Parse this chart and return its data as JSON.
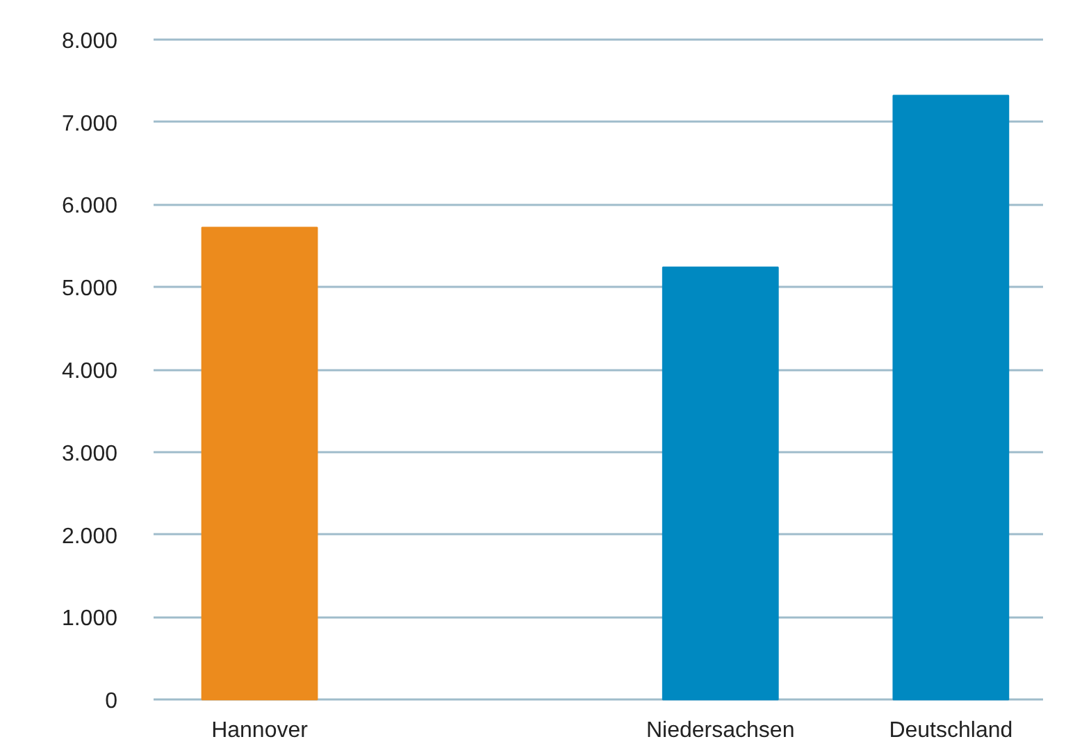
{
  "chart_data": {
    "type": "bar",
    "categories": [
      "Hannover",
      null,
      "Niedersachsen",
      "Deutschland"
    ],
    "values": [
      5720,
      null,
      5240,
      7320
    ],
    "colors": [
      "#ec8b1d",
      "#0089c1",
      "#0089c1",
      "#0089c1"
    ],
    "ylim": [
      0,
      8000
    ],
    "yticks": [
      {
        "value": 0,
        "label": "0"
      },
      {
        "value": 1000,
        "label": "1.000"
      },
      {
        "value": 2000,
        "label": "2.000"
      },
      {
        "value": 3000,
        "label": "3.000"
      },
      {
        "value": 4000,
        "label": "4.000"
      },
      {
        "value": 5000,
        "label": "5.000"
      },
      {
        "value": 6000,
        "label": "6.000"
      },
      {
        "value": 7000,
        "label": "7.000"
      },
      {
        "value": 8000,
        "label": "8.000"
      }
    ],
    "grid": "y"
  }
}
